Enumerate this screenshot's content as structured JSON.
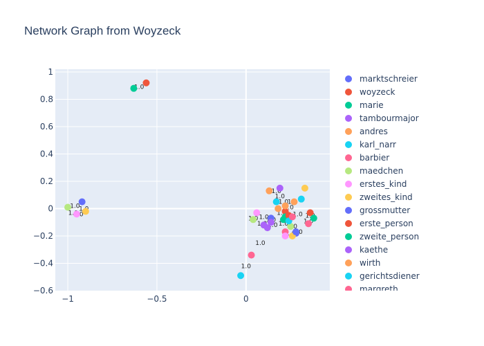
{
  "chart_data": {
    "type": "scatter",
    "title": "Network Graph from Woyzeck",
    "xlim": [
      -1.07,
      0.47
    ],
    "ylim": [
      -0.6,
      1.02
    ],
    "x_ticks": [
      -1,
      -0.5,
      0
    ],
    "y_ticks": [
      1,
      0.8,
      0.6,
      0.4,
      0.2,
      0,
      -0.2,
      -0.4,
      -0.6
    ],
    "x_tick_labels": [
      "−1",
      "−0.5",
      "0"
    ],
    "y_tick_labels": [
      "1",
      "0.8",
      "0.6",
      "0.4",
      "0.2",
      "0",
      "−0.2",
      "−0.4",
      "−0.6"
    ],
    "legend_position": "right",
    "series": [
      {
        "name": "marktschreier",
        "color": "#636efa",
        "points": [
          [
            -0.92,
            0.05
          ],
          [
            0.14,
            -0.07
          ],
          [
            0.28,
            -0.18
          ]
        ]
      },
      {
        "name": "woyzeck",
        "color": "#EF553B",
        "points": [
          [
            -0.56,
            0.92
          ],
          [
            0.36,
            -0.03
          ],
          [
            0.22,
            -0.02
          ]
        ]
      },
      {
        "name": "marie",
        "color": "#00cc96",
        "points": [
          [
            -0.63,
            0.88
          ],
          [
            0.38,
            -0.07
          ],
          [
            0.22,
            -0.06
          ]
        ]
      },
      {
        "name": "tambourmajor",
        "color": "#ab63fa",
        "points": [
          [
            0.19,
            0.15
          ],
          [
            0.1,
            -0.12
          ],
          [
            0.14,
            -0.1
          ]
        ]
      },
      {
        "name": "andres",
        "color": "#FFA15A",
        "points": [
          [
            0.13,
            0.13
          ],
          [
            0.18,
            0.0
          ],
          [
            0.27,
            0.05
          ]
        ]
      },
      {
        "name": "karl_narr",
        "color": "#19d3f3",
        "points": [
          [
            0.17,
            0.05
          ],
          [
            0.31,
            0.07
          ],
          [
            -0.03,
            -0.49
          ]
        ]
      },
      {
        "name": "barbier",
        "color": "#FF6692",
        "points": [
          [
            0.03,
            -0.34
          ],
          [
            0.35,
            -0.11
          ],
          [
            0.22,
            -0.17
          ]
        ]
      },
      {
        "name": "maedchen",
        "color": "#B6E880",
        "points": [
          [
            -1.0,
            0.01
          ],
          [
            0.04,
            -0.08
          ],
          [
            0.25,
            -0.13
          ]
        ]
      },
      {
        "name": "erstes_kind",
        "color": "#FF97FF",
        "points": [
          [
            -0.95,
            -0.04
          ],
          [
            0.06,
            -0.03
          ],
          [
            0.22,
            -0.2
          ]
        ]
      },
      {
        "name": "zweites_kind",
        "color": "#FECB52",
        "points": [
          [
            -0.9,
            -0.02
          ],
          [
            0.33,
            0.15
          ],
          [
            0.26,
            -0.2
          ]
        ]
      },
      {
        "name": "grossmutter",
        "color": "#636efa",
        "points": [
          [
            0.28,
            -0.17
          ]
        ]
      },
      {
        "name": "erste_person",
        "color": "#EF553B",
        "points": [
          [
            0.24,
            -0.05
          ]
        ]
      },
      {
        "name": "zweite_person",
        "color": "#00cc96",
        "points": [
          [
            0.21,
            -0.08
          ]
        ]
      },
      {
        "name": "kaethe",
        "color": "#ab63fa",
        "points": [
          [
            0.12,
            -0.14
          ]
        ]
      },
      {
        "name": "wirth",
        "color": "#FFA15A",
        "points": [
          [
            0.22,
            0.02
          ]
        ]
      },
      {
        "name": "gerichtsdiener",
        "color": "#19d3f3",
        "points": [
          [
            0.24,
            -0.09
          ]
        ]
      },
      {
        "name": "margreth",
        "color": "#FF6692",
        "points": [
          [
            0.26,
            -0.06
          ]
        ]
      }
    ],
    "annotations": [
      {
        "text": "1.0",
        "x": -0.6,
        "y": 0.89
      },
      {
        "text": "1.0",
        "x": 0.08,
        "y": -0.25
      },
      {
        "text": "1.0",
        "x": 0.0,
        "y": -0.42
      },
      {
        "text": "1.0",
        "x": -0.96,
        "y": 0.02
      },
      {
        "text": "1.0",
        "x": -0.91,
        "y": 0.0
      },
      {
        "text": "1.0",
        "x": -0.97,
        "y": -0.03
      },
      {
        "text": "1.0",
        "x": -0.94,
        "y": -0.04
      },
      {
        "text": "1.0",
        "x": 0.17,
        "y": 0.13
      },
      {
        "text": "1.0",
        "x": 0.19,
        "y": 0.09
      },
      {
        "text": "1.0",
        "x": 0.21,
        "y": 0.05
      },
      {
        "text": "1.0",
        "x": 0.26,
        "y": 0.05
      },
      {
        "text": "1.0",
        "x": 0.24,
        "y": 0.01
      },
      {
        "text": "1.0",
        "x": 0.29,
        "y": -0.04
      },
      {
        "text": "1.0",
        "x": 0.36,
        "y": -0.05
      },
      {
        "text": "1.0",
        "x": 0.35,
        "y": -0.09
      },
      {
        "text": "1.0",
        "x": 0.04,
        "y": -0.07
      },
      {
        "text": "1.0",
        "x": 0.1,
        "y": -0.06
      },
      {
        "text": "1.0",
        "x": 0.14,
        "y": -0.08
      },
      {
        "text": "1.0",
        "x": 0.09,
        "y": -0.11
      },
      {
        "text": "1.0",
        "x": 0.15,
        "y": -0.12
      },
      {
        "text": "1.0",
        "x": 0.21,
        "y": -0.11
      },
      {
        "text": "1.0",
        "x": 0.26,
        "y": -0.13
      },
      {
        "text": "1.0",
        "x": 0.25,
        "y": -0.18
      },
      {
        "text": "1.0",
        "x": 0.2,
        "y": -0.03
      },
      {
        "text": "1.0",
        "x": 0.29,
        "y": -0.17
      }
    ]
  },
  "colors": {
    "plot_bg": "#e5ecf6",
    "grid": "#ffffff",
    "text": "#2a3f5f"
  }
}
